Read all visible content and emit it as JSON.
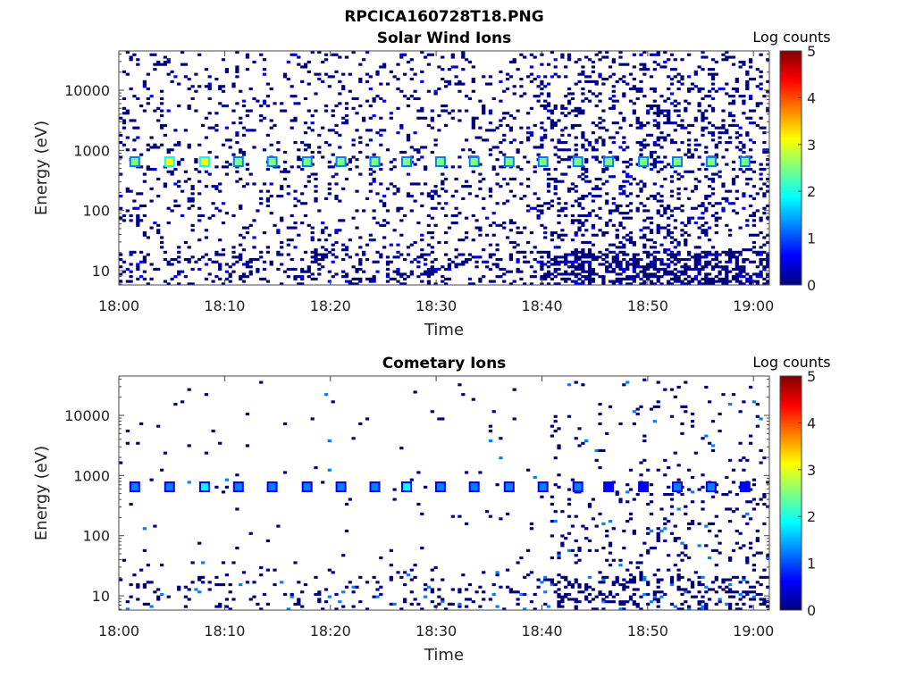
{
  "figure": {
    "title": "RPCICA160728T18.PNG"
  },
  "colormap": [
    "#00007f",
    "#0000ff",
    "#007fff",
    "#00ffff",
    "#7fff7f",
    "#ffff00",
    "#ff7f00",
    "#ff0000",
    "#7f0000"
  ],
  "chart_data": [
    {
      "type": "heatmap",
      "title": "Solar Wind Ions",
      "xlabel": "Time",
      "ylabel": "Energy (eV)",
      "colorbar_label": "Log counts",
      "x_ticks": [
        "18:00",
        "18:10",
        "18:20",
        "18:30",
        "18:40",
        "18:50",
        "19:00"
      ],
      "x_tick_minutes": [
        0,
        10,
        20,
        30,
        40,
        50,
        60
      ],
      "xlim_minutes": [
        0,
        61.5
      ],
      "y_scale": "log",
      "ylim": [
        5.8,
        45000
      ],
      "y_ticks": [
        "10",
        "100",
        "1000",
        "10000"
      ],
      "y_tick_values": [
        10,
        100,
        1000,
        10000
      ],
      "clim": [
        0,
        5
      ],
      "cbar_ticks": [
        "0",
        "1",
        "2",
        "3",
        "4",
        "5"
      ],
      "peak_energy": 650,
      "peak_times": [
        1.5,
        4.8,
        8.1,
        11.3,
        14.5,
        17.8,
        21,
        24.2,
        27.2,
        30.4,
        33.6,
        36.9,
        40.1,
        43.4,
        46.3,
        49.6,
        52.8,
        56,
        59.2
      ],
      "peak_log_counts": [
        2.6,
        3.0,
        3.2,
        2.6,
        2.5,
        2.8,
        2.4,
        2.4,
        2.3,
        2.5,
        2.3,
        2.6,
        2.4,
        2.3,
        2.2,
        2.3,
        2.4,
        2.3,
        2.2
      ],
      "background_density": "high",
      "dense_region_start": 39.5
    },
    {
      "type": "heatmap",
      "title": "Cometary Ions",
      "xlabel": "Time",
      "ylabel": "Energy (eV)",
      "colorbar_label": "Log counts",
      "x_ticks": [
        "18:00",
        "18:10",
        "18:20",
        "18:30",
        "18:40",
        "18:50",
        "19:00"
      ],
      "x_tick_minutes": [
        0,
        10,
        20,
        30,
        40,
        50,
        60
      ],
      "xlim_minutes": [
        0,
        61.5
      ],
      "y_scale": "log",
      "ylim": [
        5.8,
        45000
      ],
      "y_ticks": [
        "10",
        "100",
        "1000",
        "10000"
      ],
      "y_tick_values": [
        10,
        100,
        1000,
        10000
      ],
      "clim": [
        0,
        5
      ],
      "cbar_ticks": [
        "0",
        "1",
        "2",
        "3",
        "4",
        "5"
      ],
      "peak_energy": 650,
      "peak_times": [
        1.5,
        4.8,
        8.1,
        11.3,
        14.5,
        17.8,
        21,
        24.2,
        27.2,
        30.4,
        33.6,
        36.9,
        40.1,
        43.4,
        46.3,
        49.6,
        52.8,
        56,
        59.2
      ],
      "peak_log_counts": [
        1.5,
        1.4,
        1.6,
        1.5,
        1.4,
        1.3,
        1.5,
        1.4,
        1.6,
        1.4,
        1.5,
        1.4,
        1.3,
        1.2,
        0.9,
        0.9,
        1.0,
        1.3,
        0.9
      ],
      "background_density": "low",
      "dense_region_start": 40.5
    }
  ]
}
